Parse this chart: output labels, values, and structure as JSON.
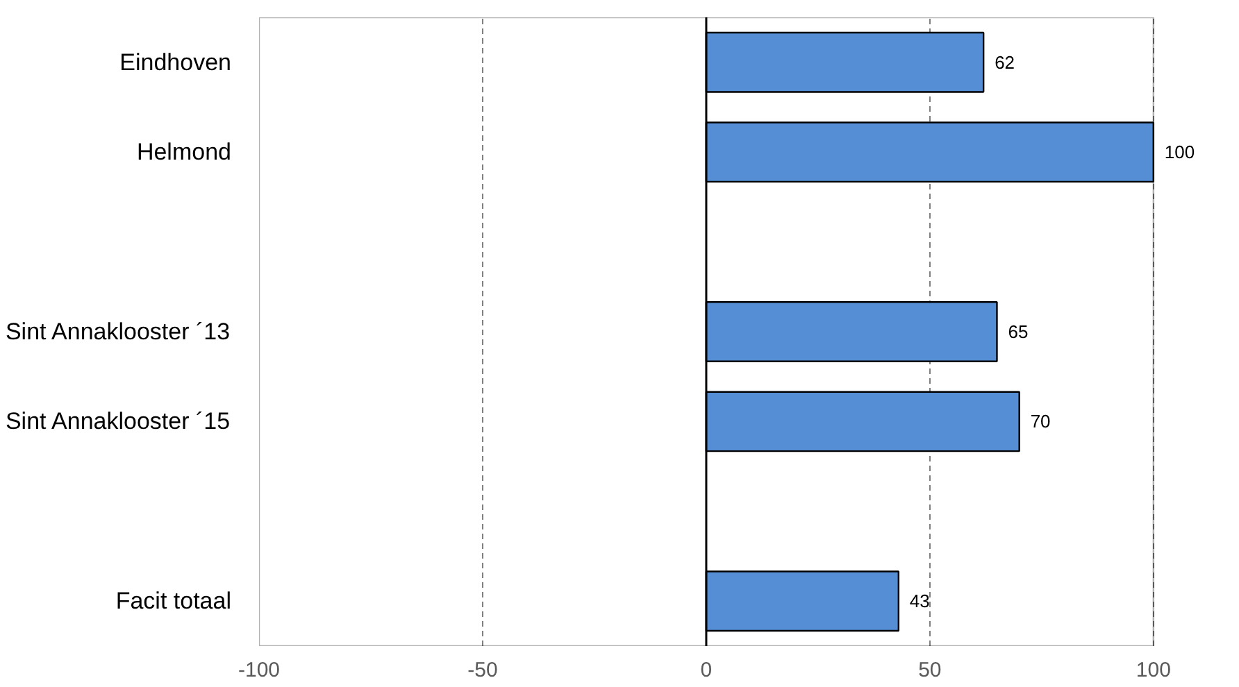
{
  "chart_data": {
    "type": "bar",
    "orientation": "horizontal",
    "categories": [
      "Eindhoven",
      "Helmond",
      null,
      "Sint Annaklooster ´13",
      "Sint Annaklooster ´15",
      null,
      "Facit totaal"
    ],
    "values": [
      62,
      100,
      null,
      65,
      70,
      null,
      43
    ],
    "color": "#558ed5",
    "xlim": [
      -100,
      100
    ],
    "xticks": [
      -100,
      -50,
      0,
      50,
      100
    ],
    "grid": "x",
    "data_labels": true
  }
}
